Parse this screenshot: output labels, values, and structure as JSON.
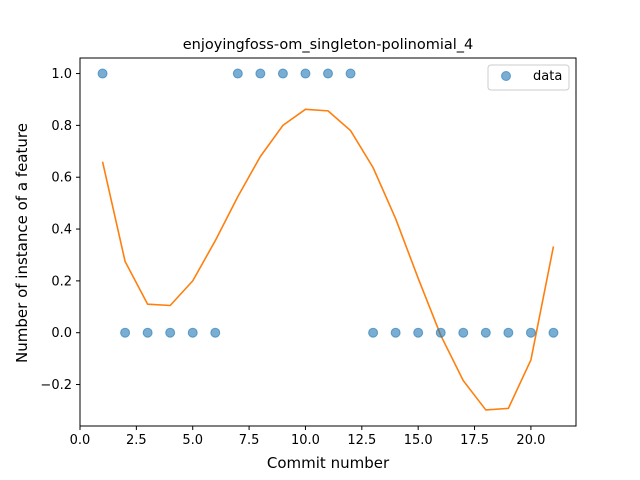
{
  "chart_data": {
    "type": "scatter",
    "title": "enjoyingfoss-om_singleton-polinomial_4",
    "xlabel": "Commit number",
    "ylabel": "Number of instance of a feature",
    "xlim": [
      0.0,
      22.0
    ],
    "ylim": [
      -0.36,
      1.06
    ],
    "xticks": [
      0.0,
      2.5,
      5.0,
      7.5,
      10.0,
      12.5,
      15.0,
      17.5,
      20.0
    ],
    "xtick_labels": [
      "0.0",
      "2.5",
      "5.0",
      "7.5",
      "10.0",
      "12.5",
      "15.0",
      "17.5",
      "20.0"
    ],
    "yticks": [
      -0.2,
      0.0,
      0.2,
      0.4,
      0.6,
      0.8,
      1.0
    ],
    "ytick_labels": [
      "−0.2",
      "0.0",
      "0.2",
      "0.4",
      "0.6",
      "0.8",
      "1.0"
    ],
    "grid": false,
    "legend": {
      "placement": "top-right",
      "entries": [
        "data"
      ]
    },
    "series": [
      {
        "name": "data",
        "kind": "scatter",
        "color": "#1f77b4",
        "x": [
          1,
          2,
          3,
          4,
          5,
          6,
          7,
          8,
          9,
          10,
          11,
          12,
          13,
          14,
          15,
          16,
          17,
          18,
          19,
          20,
          21
        ],
        "y": [
          1,
          0,
          0,
          0,
          0,
          0,
          1,
          1,
          1,
          1,
          1,
          1,
          0,
          0,
          0,
          0,
          0,
          0,
          0,
          0,
          0
        ]
      },
      {
        "kind": "line",
        "color": "#ff7f0e",
        "x": [
          1,
          2,
          3,
          4,
          5,
          6,
          7,
          8,
          9,
          10,
          11,
          12,
          13,
          14,
          15,
          16,
          17,
          18,
          19,
          20,
          21
        ],
        "y": [
          0.66,
          0.275,
          0.11,
          0.105,
          0.2,
          0.355,
          0.525,
          0.68,
          0.8,
          0.862,
          0.856,
          0.78,
          0.637,
          0.44,
          0.21,
          -0.01,
          -0.185,
          -0.298,
          -0.292,
          -0.105,
          0.333
        ]
      }
    ]
  }
}
